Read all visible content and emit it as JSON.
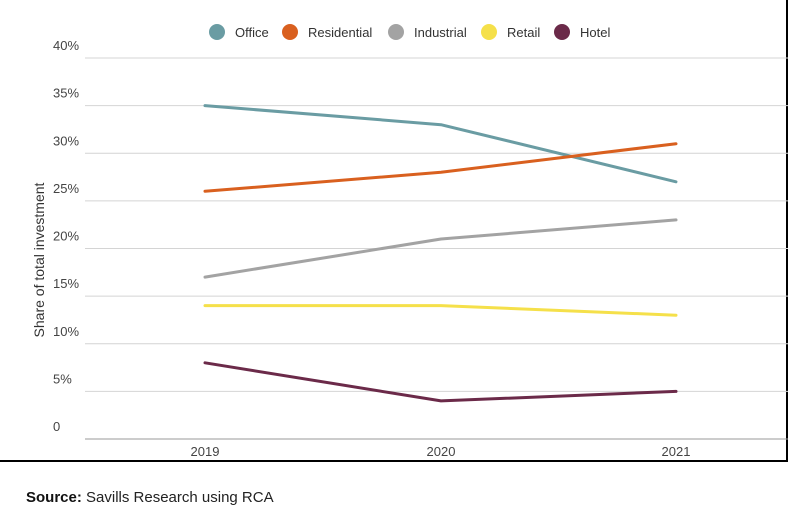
{
  "chart_data": {
    "type": "line",
    "title": "",
    "xlabel": "",
    "ylabel": "Share of total investment",
    "categories": [
      "2019",
      "2020",
      "2021"
    ],
    "y_ticks": [
      "0",
      "5%",
      "10%",
      "15%",
      "20%",
      "25%",
      "30%",
      "35%",
      "40%"
    ],
    "ylim": [
      0,
      40
    ],
    "grid": true,
    "legend_position": "top",
    "series": [
      {
        "name": "Office",
        "color": "#6a9ca3",
        "values": [
          35,
          33,
          27
        ]
      },
      {
        "name": "Residential",
        "color": "#d9601f",
        "values": [
          26,
          28,
          31
        ]
      },
      {
        "name": "Industrial",
        "color": "#a3a3a3",
        "values": [
          17,
          21,
          23
        ]
      },
      {
        "name": "Retail",
        "color": "#f5e04a",
        "values": [
          14,
          14,
          13
        ]
      },
      {
        "name": "Hotel",
        "color": "#6b2a49",
        "values": [
          8,
          4,
          5
        ]
      }
    ]
  },
  "source": {
    "label": "Source:",
    "text": "Savills Research using RCA"
  }
}
